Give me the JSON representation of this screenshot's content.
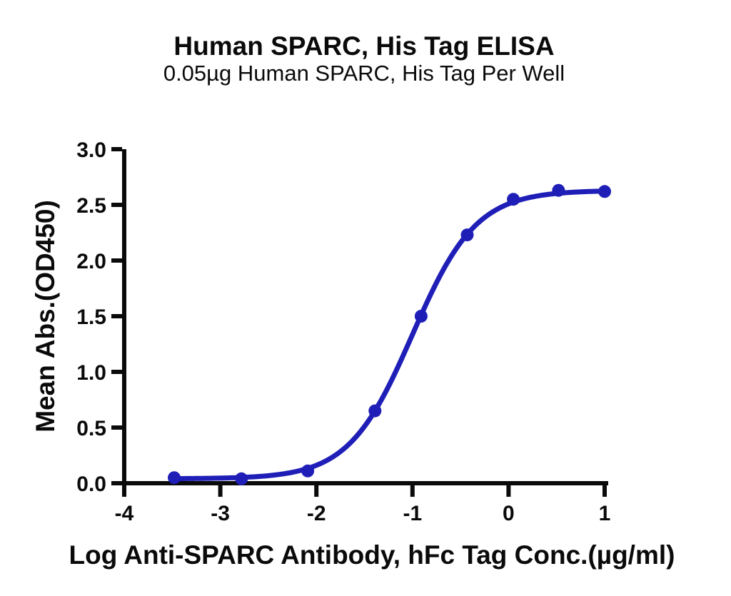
{
  "chart_data": {
    "type": "line",
    "title": "Human SPARC, His Tag ELISA",
    "subtitle": "0.05µg Human SPARC, His Tag Per Well",
    "xlabel": "Log Anti-SPARC Antibody, hFc Tag Conc.(µg/ml)",
    "ylabel": "Mean Abs.(OD450)",
    "xlim": [
      -4,
      1
    ],
    "ylim": [
      0,
      3
    ],
    "grid": false,
    "legend_position": "none",
    "x_ticks": [
      -4,
      -3,
      -2,
      -1,
      0,
      1
    ],
    "x_tick_labels": [
      "-4",
      "-3",
      "-2",
      "-1",
      "0",
      "1"
    ],
    "y_ticks": [
      0,
      0.5,
      1,
      1.5,
      2,
      2.5,
      3
    ],
    "y_tick_labels": [
      "0.0",
      "0.5",
      "1.0",
      "1.5",
      "2.0",
      "2.5",
      "3.0"
    ],
    "axis_color": "#0a0a0a",
    "series": [
      {
        "name": "Anti-SPARC Antibody, hFc Tag",
        "color": "#1f1fb8",
        "marker": "circle",
        "x": [
          -3.48,
          -2.78,
          -2.09,
          -1.39,
          -0.91,
          -0.43,
          0.05,
          0.52,
          1.0
        ],
        "y": [
          0.05,
          0.04,
          0.11,
          0.65,
          1.5,
          2.23,
          2.55,
          2.63,
          2.62
        ],
        "fit": {
          "model": "4PL",
          "bottom": 0.04,
          "top": 2.63,
          "logEC50": -1.0,
          "hillslope": 1.31
        }
      }
    ]
  }
}
